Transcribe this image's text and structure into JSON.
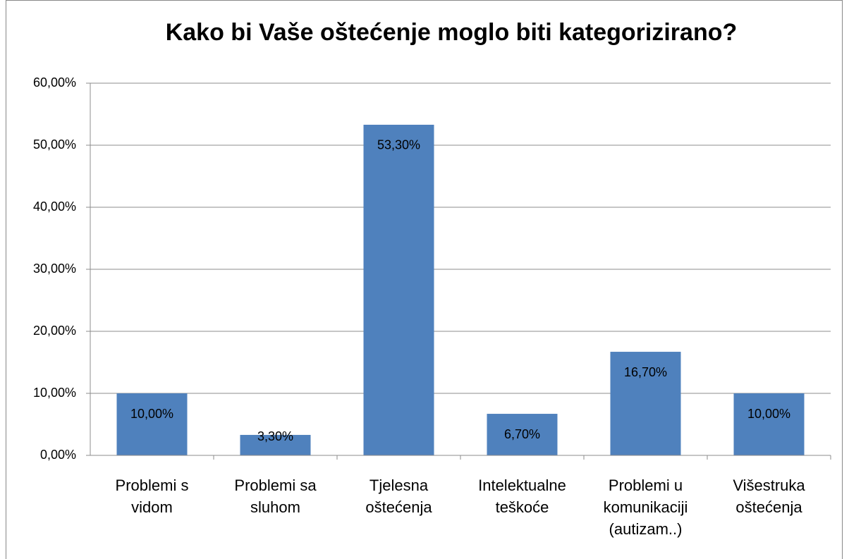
{
  "chart_data": {
    "type": "bar",
    "title": "Kako bi Vaše oštećenje moglo biti kategorizirano?",
    "categories": [
      "Problemi s vidom",
      "Problemi sa sluhom",
      "Tjelesna oštećenja",
      "Intelektualne teškoće",
      "Problemi u komunikaciji (autizam..)",
      "Višestruka oštećenja"
    ],
    "values": [
      10,
      3.3,
      53.3,
      6.7,
      16.7,
      10
    ],
    "value_labels": [
      "10,00%",
      "3,30%",
      "53,30%",
      "6,70%",
      "16,70%",
      "10,00%"
    ],
    "color": "#4f81bd",
    "ylim": [
      0,
      60
    ],
    "yticks": [
      {
        "value": 0,
        "label": "0,00%"
      },
      {
        "value": 10,
        "label": "10,00%"
      },
      {
        "value": 20,
        "label": "20,00%"
      },
      {
        "value": 30,
        "label": "30,00%"
      },
      {
        "value": 40,
        "label": "40,00%"
      },
      {
        "value": 50,
        "label": "50,00%"
      },
      {
        "value": 60,
        "label": "60,00%"
      }
    ],
    "grid": true
  }
}
